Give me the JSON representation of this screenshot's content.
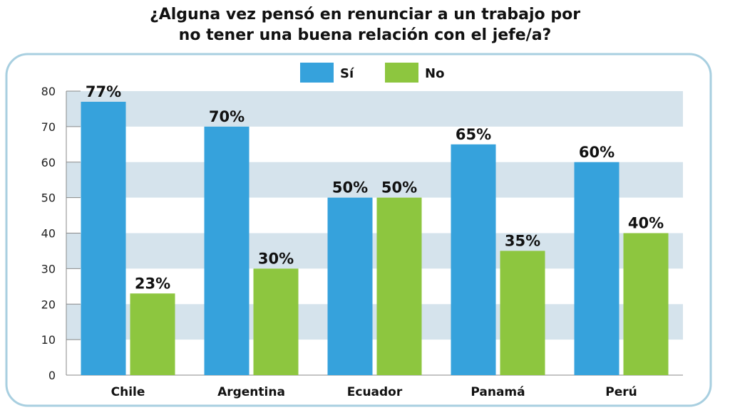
{
  "chart_data": {
    "type": "bar",
    "title_lines": [
      "¿Alguna vez pensó en renunciar a un trabajo por",
      "no tener una buena relación con el jefe/a?"
    ],
    "categories": [
      "Chile",
      "Argentina",
      "Ecuador",
      "Panamá",
      "Perú"
    ],
    "series": [
      {
        "name": "Sí",
        "color": "#36a2dc",
        "values": [
          77,
          70,
          50,
          65,
          60
        ],
        "labels": [
          "77%",
          "70%",
          "50%",
          "65%",
          "60%"
        ]
      },
      {
        "name": "No",
        "color": "#8dc63f",
        "values": [
          23,
          30,
          50,
          35,
          40
        ],
        "labels": [
          "23%",
          "30%",
          "50%",
          "35%",
          "40%"
        ]
      }
    ],
    "ylim": [
      0,
      80
    ],
    "yticks": [
      "0",
      "10",
      "20",
      "30",
      "40",
      "50",
      "60",
      "70",
      "80"
    ],
    "legend_position": "top-center",
    "band_color": "#d5e3ec",
    "frame_color": "#a8cfe0"
  }
}
